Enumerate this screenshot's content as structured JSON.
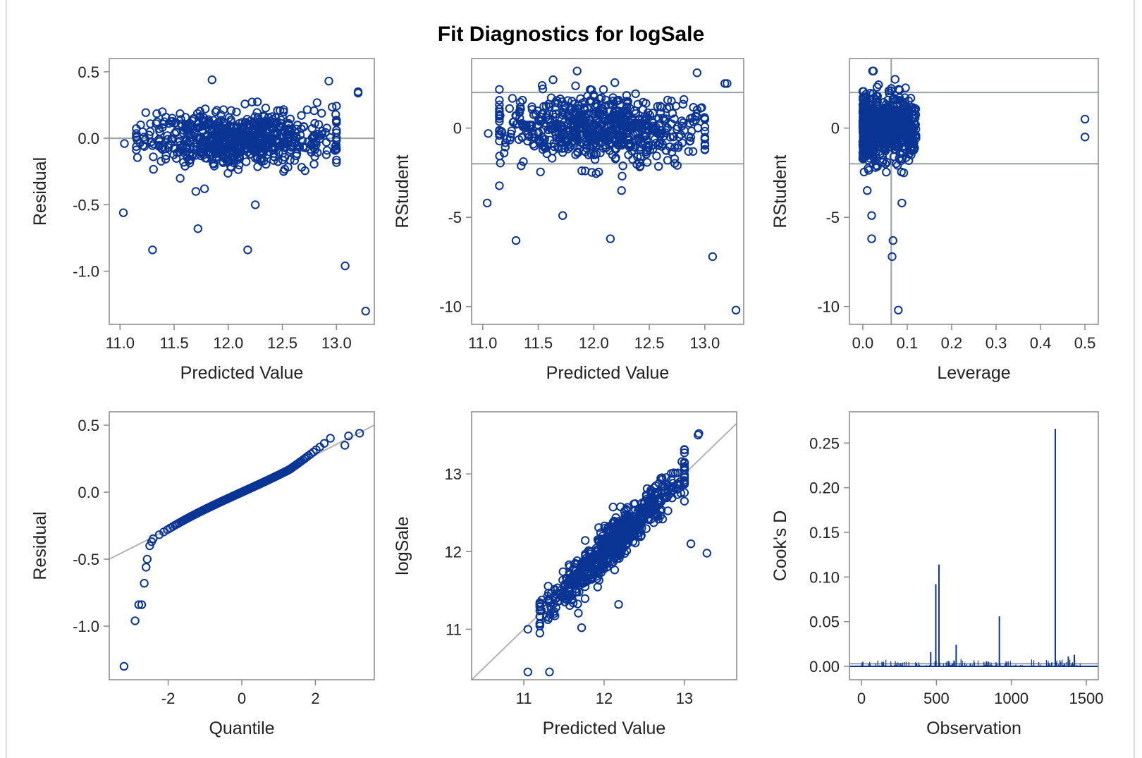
{
  "title": "Fit Diagnostics for logSale",
  "colors": {
    "marker": "#0a3594",
    "reference": "#9aa39f",
    "frame": "#888888",
    "diagonal": "#b3b3b3"
  },
  "chart_data": [
    {
      "id": "residual-vs-predicted",
      "type": "scatter",
      "xlabel": "Predicted Value",
      "ylabel": "Residual",
      "xlim": [
        10.9,
        13.35
      ],
      "ylim": [
        -1.4,
        0.6
      ],
      "xticks": [
        "11.0",
        "11.5",
        "12.0",
        "12.5",
        "13.0"
      ],
      "yticks": [
        "0.5",
        "0.0",
        "-0.5",
        "-1.0"
      ],
      "reference_lines": {
        "horizontal": [
          0
        ]
      },
      "outliers": [
        [
          11.03,
          -0.56
        ],
        [
          11.3,
          -0.84
        ],
        [
          11.72,
          -0.68
        ],
        [
          12.18,
          -0.84
        ],
        [
          13.08,
          -0.96
        ],
        [
          13.27,
          -1.3
        ],
        [
          11.04,
          -0.04
        ],
        [
          12.25,
          -0.5
        ],
        [
          11.85,
          0.44
        ],
        [
          13.2,
          0.34
        ],
        [
          13.2,
          0.35
        ],
        [
          12.93,
          0.43
        ],
        [
          11.7,
          -0.4
        ],
        [
          11.78,
          -0.38
        ]
      ],
      "cloud": {
        "n": 700,
        "x_range": [
          11.15,
          13.0
        ],
        "y_center": 0.0,
        "y_sd": 0.1
      }
    },
    {
      "id": "rstudent-vs-predicted",
      "type": "scatter",
      "xlabel": "Predicted Value",
      "ylabel": "RStudent",
      "xlim": [
        10.9,
        13.35
      ],
      "ylim": [
        -11.0,
        3.9
      ],
      "xticks": [
        "11.0",
        "11.5",
        "12.0",
        "12.5",
        "13.0"
      ],
      "yticks": [
        "0",
        "-5",
        "-10"
      ],
      "reference_lines": {
        "horizontal": [
          2,
          -2
        ]
      },
      "outliers": [
        [
          11.04,
          -4.2
        ],
        [
          11.3,
          -6.3
        ],
        [
          11.72,
          -4.9
        ],
        [
          12.15,
          -6.2
        ],
        [
          13.07,
          -7.2
        ],
        [
          13.28,
          -10.2
        ],
        [
          12.25,
          -3.5
        ],
        [
          11.85,
          3.2
        ],
        [
          13.2,
          2.5
        ],
        [
          13.18,
          2.5
        ],
        [
          12.93,
          3.1
        ],
        [
          11.05,
          -0.3
        ]
      ],
      "cloud": {
        "n": 700,
        "x_range": [
          11.15,
          13.0
        ],
        "y_center": 0.0,
        "y_sd": 0.9
      }
    },
    {
      "id": "rstudent-vs-leverage",
      "type": "scatter",
      "xlabel": "Leverage",
      "ylabel": "RStudent",
      "xlim": [
        -0.03,
        0.53
      ],
      "ylim": [
        -11.0,
        3.9
      ],
      "xticks": [
        "0.0",
        "0.1",
        "0.2",
        "0.3",
        "0.4",
        "0.5"
      ],
      "yticks": [
        "0",
        "-5",
        "-10"
      ],
      "reference_lines": {
        "horizontal": [
          2,
          -2
        ],
        "vertical": [
          0.064
        ]
      },
      "outliers": [
        [
          0.5,
          0.5
        ],
        [
          0.5,
          -0.5
        ],
        [
          0.08,
          -10.2
        ],
        [
          0.066,
          -7.2
        ],
        [
          0.068,
          -6.3
        ],
        [
          0.02,
          -6.2
        ],
        [
          0.02,
          -4.9
        ],
        [
          0.088,
          -4.2
        ],
        [
          0.022,
          3.2
        ],
        [
          0.024,
          3.2
        ],
        [
          0.01,
          -3.5
        ]
      ],
      "cloud": {
        "n": 700,
        "x_range": [
          0.0,
          0.12
        ],
        "y_center": 0.0,
        "y_sd": 0.9
      }
    },
    {
      "id": "qq-residual",
      "type": "scatter",
      "xlabel": "Quantile",
      "ylabel": "Residual",
      "xlim": [
        -3.6,
        3.6
      ],
      "ylim": [
        -1.4,
        0.6
      ],
      "xticks": [
        "-2",
        "0",
        "2"
      ],
      "yticks": [
        "0.5",
        "0.0",
        "-0.5",
        "-1.0"
      ],
      "reference_lines": {
        "diagonal": [
          [
            -3.6,
            -0.5
          ],
          [
            3.6,
            0.5
          ]
        ]
      },
      "tail_points": [
        [
          -3.2,
          -1.3
        ],
        [
          -2.9,
          -0.96
        ],
        [
          -2.8,
          -0.84
        ],
        [
          -2.72,
          -0.84
        ],
        [
          -2.65,
          -0.68
        ],
        [
          -2.6,
          -0.56
        ],
        [
          -2.57,
          -0.5
        ],
        [
          -2.5,
          -0.4
        ],
        [
          -2.45,
          -0.37
        ],
        [
          2.8,
          0.35
        ],
        [
          2.9,
          0.42
        ],
        [
          3.2,
          0.44
        ]
      ],
      "curve": {
        "n": 220,
        "q_range": [
          -2.45,
          2.6
        ]
      }
    },
    {
      "id": "observed-vs-predicted",
      "type": "scatter",
      "xlabel": "Predicted Value",
      "ylabel": "logSale",
      "xlim": [
        10.35,
        13.65
      ],
      "ylim": [
        10.35,
        13.8
      ],
      "xticks": [
        "11",
        "12",
        "13"
      ],
      "yticks": [
        "13",
        "12",
        "11"
      ],
      "reference_lines": {
        "diagonal": [
          [
            10.35,
            10.35
          ],
          [
            13.65,
            13.65
          ]
        ]
      },
      "outliers": [
        [
          11.05,
          10.45
        ],
        [
          11.32,
          10.45
        ],
        [
          13.08,
          12.1
        ],
        [
          13.28,
          11.98
        ],
        [
          12.18,
          11.32
        ],
        [
          11.72,
          11.02
        ],
        [
          11.05,
          11.0
        ],
        [
          11.2,
          10.95
        ],
        [
          13.17,
          13.5
        ],
        [
          13.18,
          13.52
        ]
      ],
      "cloud": {
        "n": 700,
        "x_range": [
          11.2,
          13.0
        ],
        "y_sd": 0.13
      }
    },
    {
      "id": "cooks-d",
      "type": "needle",
      "xlabel": "Observation",
      "ylabel": "Cook's D",
      "xlim": [
        -80,
        1580
      ],
      "ylim": [
        -0.015,
        0.285
      ],
      "xticks": [
        "0",
        "500",
        "1000",
        "1500"
      ],
      "yticks": [
        "0.25",
        "0.20",
        "0.15",
        "0.10",
        "0.05",
        "0.00"
      ],
      "reference_lines": {
        "horizontal": [
          0.003
        ]
      },
      "spikes": [
        [
          496,
          0.092
        ],
        [
          517,
          0.114
        ],
        [
          632,
          0.024
        ],
        [
          920,
          0.056
        ],
        [
          1293,
          0.266
        ],
        [
          462,
          0.016
        ],
        [
          1420,
          0.013
        ],
        [
          1380,
          0.011
        ]
      ],
      "n_observations": 1460,
      "baseline_max": 0.008
    }
  ]
}
